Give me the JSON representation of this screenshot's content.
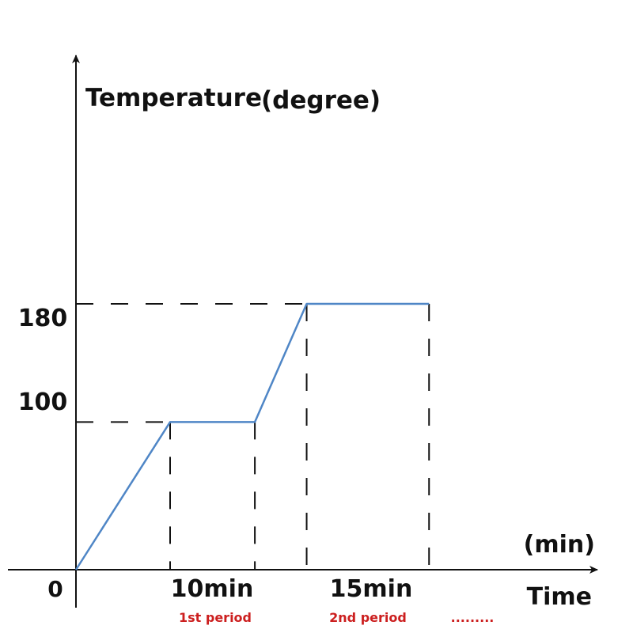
{
  "chart_data": {
    "type": "line",
    "ylabel": "Temperature",
    "ylabel_unit": "(degree)",
    "xlabel": "Time",
    "xlabel_unit": "(min)",
    "origin_label": "0",
    "y_ticks": [
      {
        "value": 100,
        "label": "100"
      },
      {
        "value": 180,
        "label": "180"
      }
    ],
    "x_labels": [
      {
        "value": 10,
        "label": "10min"
      },
      {
        "value": 25,
        "label": "15min"
      }
    ],
    "period_labels": [
      {
        "center": 15,
        "label": "1st period"
      },
      {
        "center": 31.5,
        "label": "2nd period"
      },
      {
        "center": 43,
        "label": "........."
      }
    ],
    "series": [
      {
        "color": "#4f86c6",
        "points": [
          [
            0,
            0
          ],
          [
            10,
            100
          ],
          [
            19,
            100
          ],
          [
            24.5,
            180
          ],
          [
            37.5,
            180
          ]
        ]
      }
    ],
    "y_guides": [
      {
        "value": 100,
        "x_end": 10
      },
      {
        "value": 180,
        "x_end": 24.5
      }
    ],
    "x_guides": [
      {
        "value": 10,
        "y_end": 100
      },
      {
        "value": 19,
        "y_end": 100
      },
      {
        "value": 24.5,
        "y_end": 180
      },
      {
        "value": 37.5,
        "y_end": 180
      }
    ]
  }
}
